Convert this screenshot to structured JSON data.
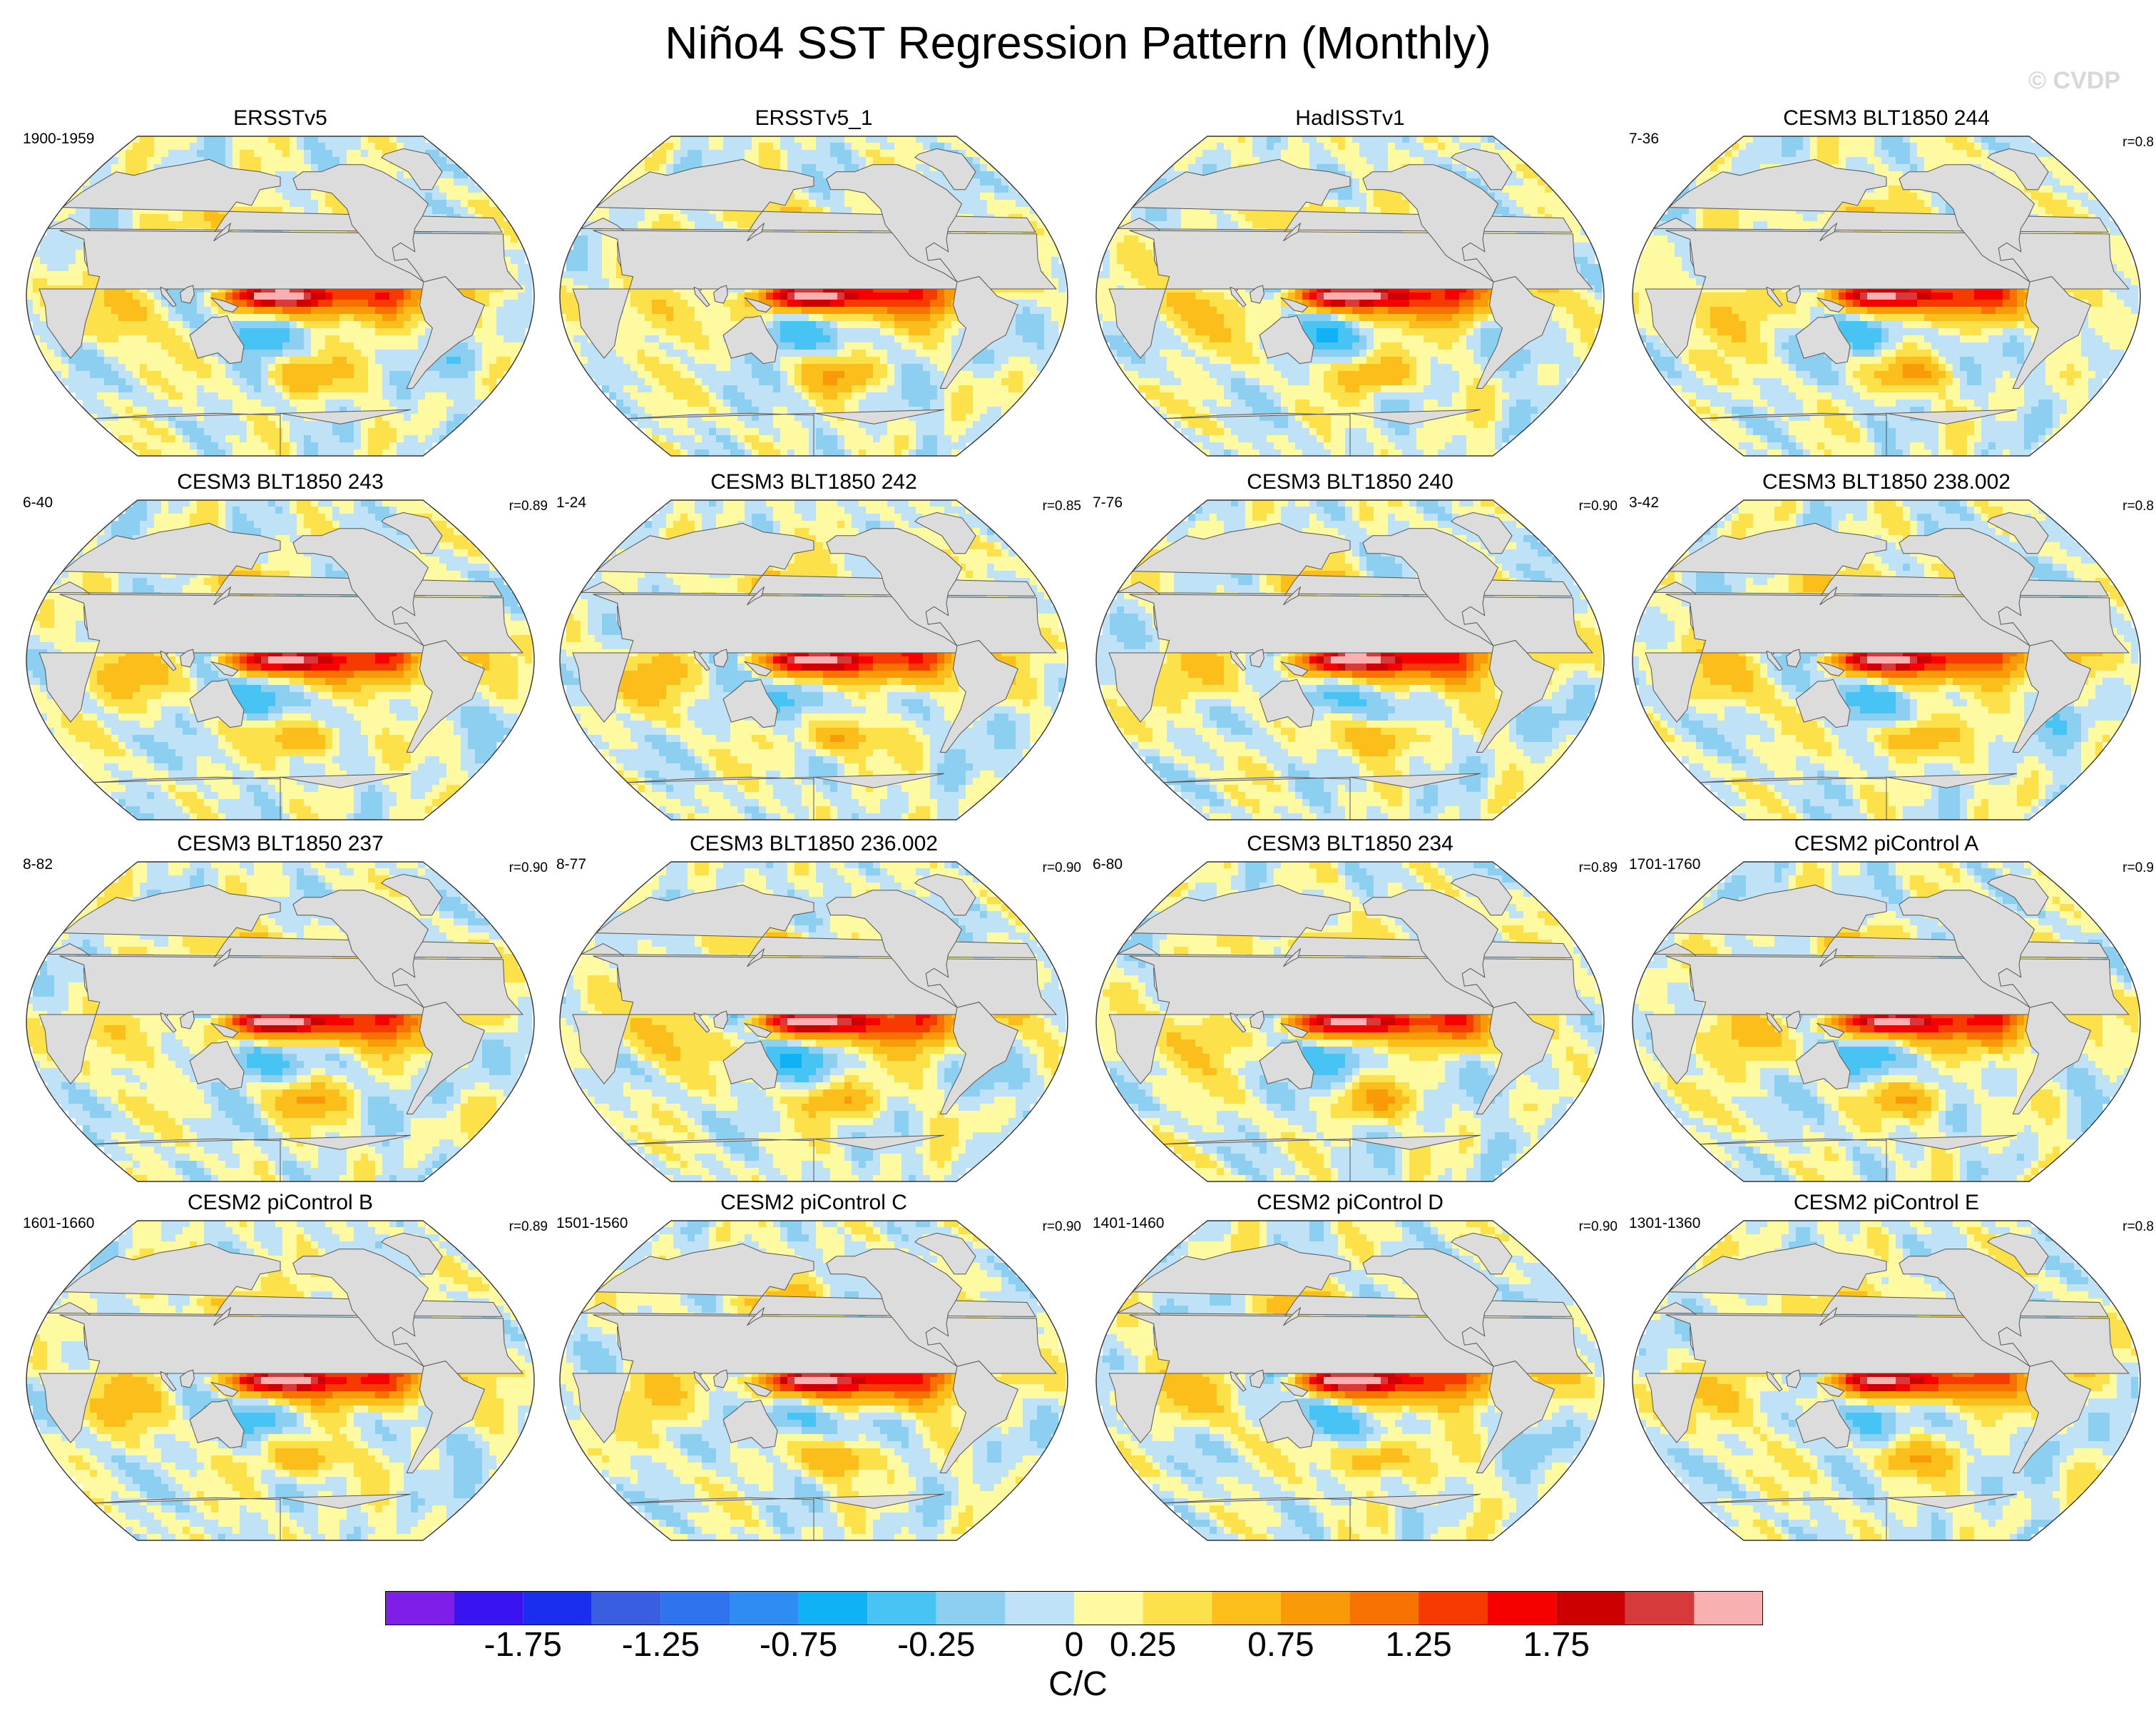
{
  "title": "Niño4 SST Regression Pattern (Monthly)",
  "credit": "© CVDP",
  "panels": [
    {
      "name": "ERSSTv5",
      "period": "1900-1959",
      "corr": "",
      "amp": 1.0,
      "v": 0
    },
    {
      "name": "ERSSTv5_1",
      "period": "",
      "corr": "",
      "amp": 1.0,
      "v": 1
    },
    {
      "name": "HadISSTv1",
      "period": "",
      "corr": "",
      "amp": 1.05,
      "v": 2
    },
    {
      "name": "CESM3 BLT1850 244",
      "period": "7-36",
      "corr": "r=0.8",
      "amp": 0.95,
      "v": 3
    },
    {
      "name": "CESM3 BLT1850 243",
      "period": "6-40",
      "corr": "r=0.89",
      "amp": 0.95,
      "v": 4
    },
    {
      "name": "CESM3 BLT1850 242",
      "period": "1-24",
      "corr": "r=0.85",
      "amp": 0.95,
      "v": 5
    },
    {
      "name": "CESM3 BLT1850 240",
      "period": "7-76",
      "corr": "r=0.90",
      "amp": 1.05,
      "v": 6
    },
    {
      "name": "CESM3 BLT1850 238.002",
      "period": "3-42",
      "corr": "r=0.8",
      "amp": 0.95,
      "v": 7
    },
    {
      "name": "CESM3 BLT1850 237",
      "period": "8-82",
      "corr": "r=0.90",
      "amp": 1.0,
      "v": 8
    },
    {
      "name": "CESM3 BLT1850 236.002",
      "period": "8-77",
      "corr": "r=0.90",
      "amp": 1.0,
      "v": 9
    },
    {
      "name": "CESM3 BLT1850 234",
      "period": "6-80",
      "corr": "r=0.89",
      "amp": 0.95,
      "v": 10
    },
    {
      "name": "CESM2 piControl A",
      "period": "1701-1760",
      "corr": "r=0.9",
      "amp": 0.95,
      "v": 11
    },
    {
      "name": "CESM2 piControl B",
      "period": "1601-1660",
      "corr": "r=0.89",
      "amp": 1.0,
      "v": 12
    },
    {
      "name": "CESM2 piControl C",
      "period": "1501-1560",
      "corr": "r=0.90",
      "amp": 1.0,
      "v": 13
    },
    {
      "name": "CESM2 piControl D",
      "period": "1401-1460",
      "corr": "r=0.90",
      "amp": 1.0,
      "v": 14
    },
    {
      "name": "CESM2 piControl E",
      "period": "1301-1360",
      "corr": "r=0.8",
      "amp": 0.9,
      "v": 15
    }
  ],
  "colorbar": {
    "units": "C/C",
    "labels": [
      "-1.75",
      "-1.25",
      "-0.75",
      "-0.25",
      "0",
      "0.25",
      "0.75",
      "1.25",
      "1.75"
    ],
    "label_box_index": [
      2,
      4,
      6,
      8,
      10,
      11,
      13,
      15,
      17
    ],
    "levels": [
      -2.0,
      -1.75,
      -1.5,
      -1.25,
      -1.0,
      -0.75,
      -0.5,
      -0.25,
      -0.1,
      0,
      0.1,
      0.25,
      0.5,
      0.75,
      1.0,
      1.25,
      1.5,
      1.75,
      2.0
    ],
    "colors": [
      "#7e1ee8",
      "#3a14f0",
      "#1a2ef0",
      "#3a5ee0",
      "#2f74ee",
      "#2f8cf2",
      "#10b2f6",
      "#48c4f4",
      "#8ccff0",
      "#bfe2f6",
      "#fefaa2",
      "#fde14a",
      "#fbbe1a",
      "#f99a08",
      "#f77200",
      "#f73a00",
      "#f60000",
      "#cc0000",
      "#d63a3a",
      "#f8b0b0"
    ],
    "land_color": "#dcdcdc"
  }
}
